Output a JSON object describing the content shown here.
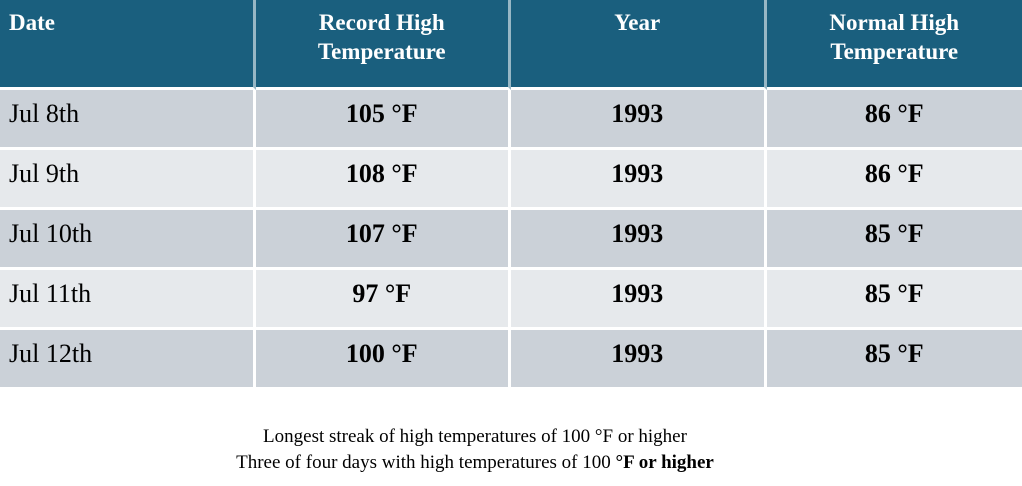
{
  "table": {
    "headers": [
      "Date",
      "Record High Temperature",
      "Year",
      "Normal High Temperature"
    ],
    "rows": [
      [
        "Jul 8th",
        "105 °F",
        "1993",
        "86 °F"
      ],
      [
        "Jul 9th",
        "108 °F",
        "1993",
        "86 °F"
      ],
      [
        "Jul 10th",
        "107 °F",
        "1993",
        "85 °F"
      ],
      [
        "Jul 11th",
        "97 °F",
        "1993",
        "85 °F"
      ],
      [
        "Jul 12th",
        "100 °F",
        "1993",
        "85 °F"
      ]
    ]
  },
  "footer": {
    "line1": "Longest streak of high temperatures of 100 °F or higher",
    "line2_regular": "Three of four days with high temperatures of 100 ",
    "line2_bold": "°F or higher"
  },
  "colors": {
    "header_bg": "#1A5F7E",
    "row_dark": "#CBD1D8",
    "row_light": "#E6E9EC",
    "header_text": "#FFFFFF",
    "body_text": "#000000"
  }
}
